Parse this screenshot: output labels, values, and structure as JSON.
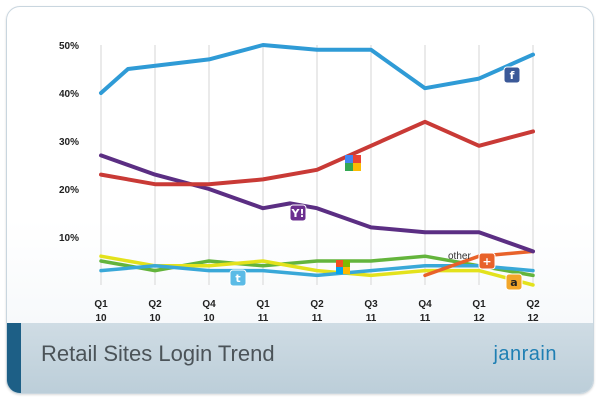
{
  "chart_data": {
    "type": "line",
    "title": "Retail Sites Login Trend",
    "categories": [
      {
        "q": "Q1",
        "yr": "10"
      },
      {
        "q": "Q2",
        "yr": "10"
      },
      {
        "q": "Q4",
        "yr": "10"
      },
      {
        "q": "Q1",
        "yr": "11"
      },
      {
        "q": "Q2",
        "yr": "11"
      },
      {
        "q": "Q3",
        "yr": "11"
      },
      {
        "q": "Q4",
        "yr": "11"
      },
      {
        "q": "Q1",
        "yr": "12"
      },
      {
        "q": "Q2",
        "yr": "12"
      }
    ],
    "x": [
      0,
      1,
      2,
      3,
      4,
      5,
      6,
      7,
      8
    ],
    "ylim": [
      0,
      50
    ],
    "yticks": [
      10,
      20,
      30,
      40,
      50
    ],
    "ytick_labels": [
      "10%",
      "20%",
      "30%",
      "40%",
      "50%"
    ],
    "grid": true,
    "series": [
      {
        "name": "Facebook",
        "icon": "facebook-icon",
        "color": "#2f9bd6",
        "x": [
          0,
          0.5,
          2,
          3,
          4,
          5,
          6,
          7,
          8
        ],
        "values": [
          40,
          45,
          47,
          50,
          49,
          49,
          41,
          43,
          48
        ]
      },
      {
        "name": "Google",
        "icon": "google-icon",
        "color": "#c93a36",
        "x": [
          0,
          1,
          2,
          3,
          4,
          5,
          6,
          7,
          8
        ],
        "values": [
          23,
          21,
          21,
          22,
          24,
          29,
          34,
          29,
          32
        ]
      },
      {
        "name": "Yahoo",
        "icon": "yahoo-icon",
        "color": "#5b2e83",
        "x": [
          0,
          1,
          2,
          3,
          3.5,
          4,
          5,
          6,
          7,
          8
        ],
        "values": [
          27,
          23,
          20,
          16,
          17,
          16,
          12,
          11,
          11,
          7
        ]
      },
      {
        "name": "Twitter",
        "icon": "twitter-icon",
        "color": "#39a8d8",
        "x": [
          0,
          1,
          2,
          3,
          4,
          5,
          6,
          7,
          8
        ],
        "values": [
          3,
          4,
          3,
          3,
          2,
          3,
          4,
          4,
          3
        ]
      },
      {
        "name": "Windows Live",
        "icon": "windows-icon",
        "color": "#63b43c",
        "x": [
          0,
          1,
          2,
          3,
          4,
          5,
          6,
          7,
          8
        ],
        "values": [
          5,
          3,
          5,
          4,
          5,
          5,
          6,
          4,
          2
        ]
      },
      {
        "name": "AOL",
        "icon": "aol-icon",
        "color": "#e3e21c",
        "x": [
          0,
          1,
          2,
          3,
          4,
          5,
          6,
          7,
          8
        ],
        "values": [
          6,
          4,
          4,
          5,
          3,
          2,
          3,
          3,
          0
        ]
      },
      {
        "name": "other",
        "icon": "google-plus-icon",
        "color": "#e8622a",
        "x": [
          6,
          7,
          8
        ],
        "values": [
          2,
          6,
          7
        ]
      }
    ],
    "annotations": [
      {
        "text": "other"
      }
    ]
  },
  "footer": {
    "title": "Retail Sites Login Trend",
    "brand": "janrain"
  }
}
